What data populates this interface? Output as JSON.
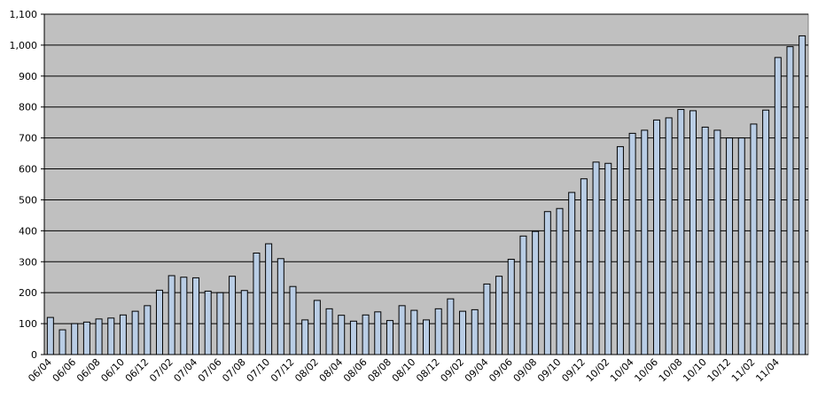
{
  "chart_data": {
    "type": "bar",
    "categories": [
      "06/04",
      null,
      "06/06",
      null,
      "06/08",
      null,
      "06/10",
      null,
      "06/12",
      null,
      "07/02",
      null,
      "07/04",
      null,
      "07/06",
      null,
      "07/08",
      null,
      "07/10",
      null,
      "07/12",
      null,
      "08/02",
      null,
      "08/04",
      null,
      "08/06",
      null,
      "08/08",
      null,
      "08/10",
      null,
      "08/12",
      null,
      "09/02",
      null,
      "09/04",
      null,
      "09/06",
      null,
      "09/08",
      null,
      "09/10",
      null,
      "09/12",
      null,
      "10/02",
      null,
      "10/04",
      null,
      "10/06",
      null,
      "10/08",
      null,
      "10/10",
      null,
      "10/12",
      null,
      "11/02",
      null,
      "11/04",
      null,
      null
    ],
    "values": [
      120,
      80,
      100,
      105,
      115,
      118,
      128,
      140,
      158,
      208,
      255,
      250,
      248,
      205,
      200,
      253,
      207,
      328,
      358,
      310,
      220,
      112,
      175,
      148,
      127,
      108,
      128,
      138,
      110,
      158,
      143,
      112,
      148,
      180,
      140,
      145,
      228,
      253,
      308,
      383,
      398,
      462,
      472,
      524,
      568,
      622,
      618,
      672,
      715,
      725,
      758,
      765,
      792,
      788,
      735,
      725,
      700,
      700,
      745,
      790,
      960,
      995,
      1030
    ],
    "color": "#b9cde5",
    "ylim": [
      0,
      1100
    ],
    "yticks": [
      0,
      100,
      200,
      300,
      400,
      500,
      600,
      700,
      800,
      900,
      {
        "value": 1000,
        "label": "1,000"
      },
      {
        "value": 1100,
        "label": "1,100"
      }
    ],
    "grid": true
  }
}
